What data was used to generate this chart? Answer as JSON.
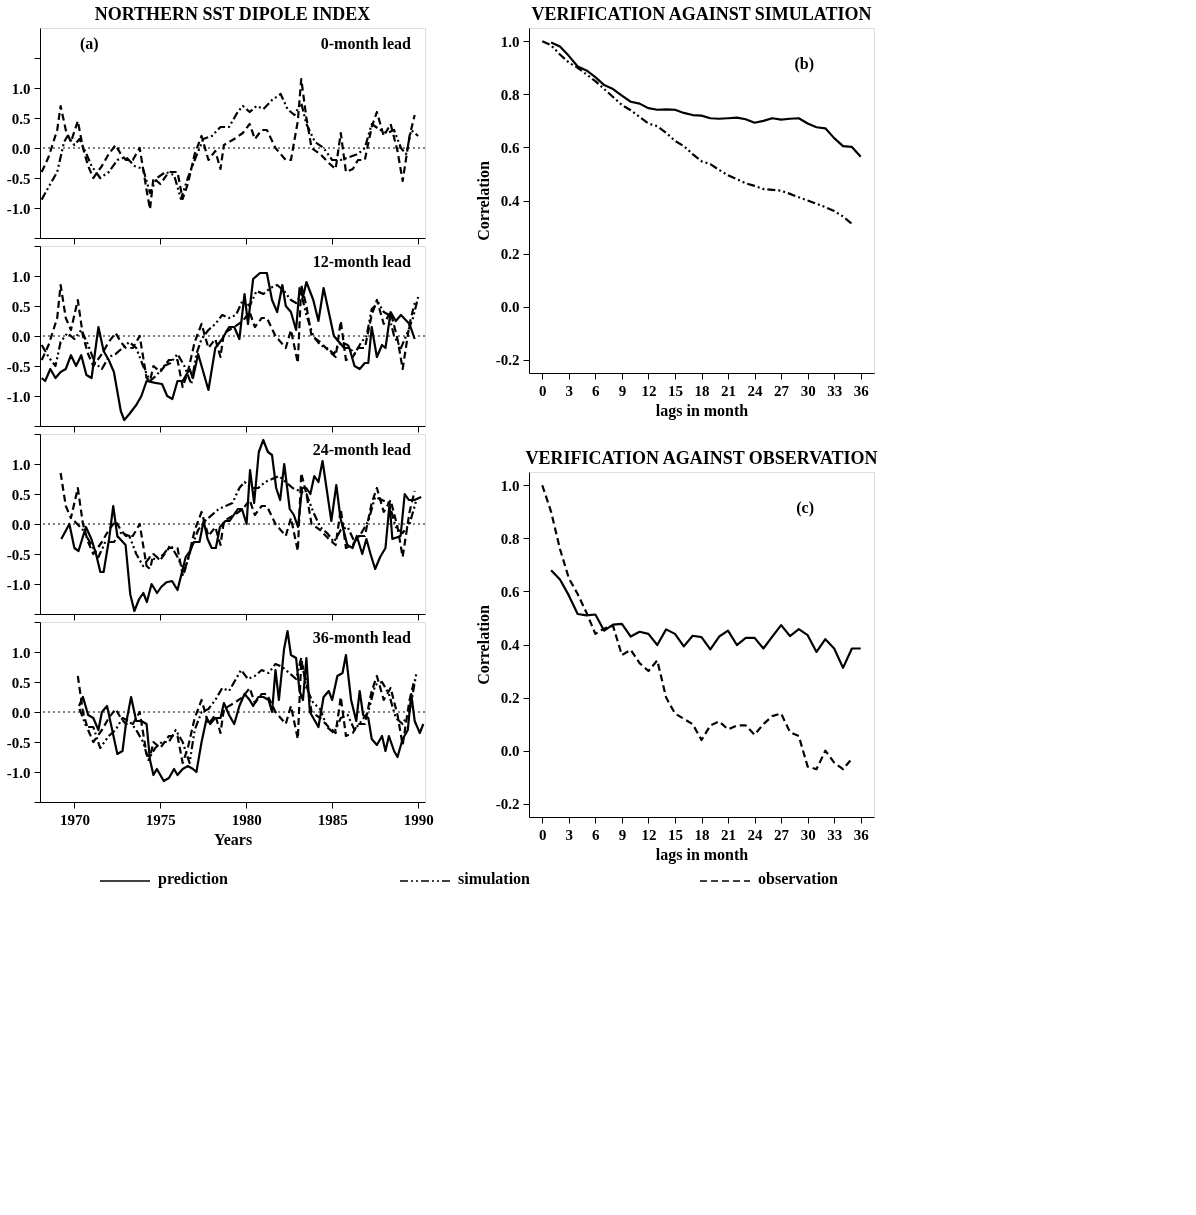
{
  "chart_data": [
    {
      "type": "line",
      "title": "NORTHERN SST DIPOLE INDEX",
      "subtitle": "0-month lead",
      "annotations": [
        "(a)"
      ],
      "tick_labels": "y",
      "xlim": [
        1968,
        1990.4
      ],
      "xticks": [
        1970,
        1975,
        1980,
        1985,
        1990
      ],
      "ylim": [
        -1.5,
        2.0
      ],
      "yticks": [
        {
          "value": -1.5,
          "label": null
        },
        {
          "value": -1,
          "label": "-1.0"
        },
        -0.5,
        {
          "value": 0,
          "label": "0.0"
        },
        0.5,
        {
          "value": 1,
          "label": "1.0"
        },
        {
          "value": 1.5,
          "label": null
        }
      ],
      "ref_lines": [
        {
          "axis": "y",
          "value": 0.0,
          "line_style": "dotted",
          "color": "#000000"
        }
      ],
      "series": [
        {
          "color": "#000000",
          "line_style": "dashdotdot",
          "x": [
            1968.1,
            1968.5,
            1969,
            1969.4,
            1969.6,
            1970,
            1970.3,
            1970.7,
            1971,
            1971.5,
            1972,
            1972.5,
            1973,
            1973.5,
            1974,
            1974.4,
            1974.8,
            1975.3,
            1975.8,
            1976.2,
            1976.6,
            1977,
            1977.5,
            1978,
            1978.5,
            1979,
            1979.5,
            1979.8,
            1980.2,
            1980.6,
            1981,
            1981.5,
            1982,
            1982.4,
            1982.8,
            1983.2,
            1983.5,
            1984,
            1984.5,
            1985,
            1985.5,
            1986,
            1986.5,
            1986.9,
            1987.3,
            1987.8,
            1988.2,
            1988.6,
            1989,
            1989.3,
            1989.6,
            1990
          ],
          "values": [
            -0.86,
            -0.65,
            -0.4,
            0.1,
            0.2,
            0.05,
            0.15,
            -0.1,
            -0.3,
            -0.5,
            -0.4,
            -0.2,
            -0.15,
            -0.3,
            -0.35,
            -0.75,
            -0.5,
            -0.4,
            -0.45,
            -0.85,
            -0.5,
            -0.2,
            0.15,
            0.2,
            0.35,
            0.35,
            0.6,
            0.7,
            0.6,
            0.7,
            0.65,
            0.8,
            0.9,
            0.65,
            0.55,
            0.75,
            0.4,
            0.1,
            0.0,
            -0.2,
            -0.2,
            -0.15,
            -0.1,
            0.0,
            0.4,
            0.3,
            0.25,
            0.3,
            0.0,
            -0.1,
            0.3,
            0.2
          ]
        },
        {
          "color": "#000000",
          "line_style": "dashed",
          "x": [
            1968.1,
            1968.5,
            1969,
            1969.2,
            1969.5,
            1969.8,
            1970.2,
            1970.5,
            1970.8,
            1971.1,
            1971.6,
            1972,
            1972.4,
            1972.7,
            1973,
            1973.4,
            1973.8,
            1974.2,
            1974.4,
            1974.6,
            1975,
            1975.5,
            1976,
            1976.3,
            1976.6,
            1977,
            1977.4,
            1977.8,
            1978.2,
            1978.5,
            1978.7,
            1979.3,
            1979.8,
            1980.2,
            1980.5,
            1980.9,
            1981.2,
            1981.7,
            1982.3,
            1982.6,
            1983,
            1983.2,
            1983.5,
            1983.8,
            1984.3,
            1984.8,
            1985.2,
            1985.5,
            1985.8,
            1986.2,
            1986.5,
            1986.9,
            1987.3,
            1987.6,
            1988,
            1988.4,
            1988.8,
            1989.1,
            1989.5,
            1989.8
          ],
          "values": [
            -0.4,
            -0.15,
            0.3,
            0.7,
            0.3,
            0.1,
            0.45,
            0.0,
            -0.3,
            -0.5,
            -0.3,
            -0.1,
            0.05,
            -0.1,
            -0.2,
            -0.2,
            0.0,
            -0.7,
            -1.02,
            -0.5,
            -0.6,
            -0.4,
            -0.4,
            -0.85,
            -0.6,
            -0.1,
            0.2,
            -0.2,
            -0.05,
            -0.35,
            0.05,
            0.15,
            0.25,
            0.4,
            0.15,
            0.3,
            0.3,
            0.0,
            -0.2,
            -0.2,
            0.45,
            1.15,
            0.5,
            0.0,
            -0.1,
            -0.25,
            -0.35,
            0.25,
            -0.4,
            -0.35,
            -0.2,
            -0.2,
            0.35,
            0.6,
            0.2,
            0.4,
            -0.05,
            -0.55,
            0.2,
            0.55
          ]
        }
      ]
    },
    {
      "type": "line",
      "subtitle": "12-month lead",
      "tick_labels": "y",
      "xlim": [
        1968,
        1990.4
      ],
      "xticks": [
        1970,
        1975,
        1980,
        1985,
        1990
      ],
      "ylim": [
        -1.5,
        1.5
      ],
      "yticks": [
        {
          "value": -1.5,
          "label": null
        },
        {
          "value": -1,
          "label": "-1.0"
        },
        -0.5,
        {
          "value": 0,
          "label": "0.0"
        },
        0.5,
        {
          "value": 1,
          "label": "1.0"
        },
        {
          "value": 1.5,
          "label": null
        }
      ],
      "ref_lines": [
        {
          "axis": "y",
          "value": 0.0,
          "line_style": "dotted",
          "color": "#000000"
        }
      ],
      "series": [
        {
          "color": "#000000",
          "line_style": "solid",
          "x": [
            1968.1,
            1968.3,
            1968.6,
            1968.9,
            1969.2,
            1969.5,
            1969.8,
            1970.1,
            1970.4,
            1970.7,
            1971,
            1971.4,
            1971.7,
            1972,
            1972.3,
            1972.7,
            1972.9,
            1973.2,
            1973.6,
            1973.9,
            1974.2,
            1974.7,
            1975.1,
            1975.4,
            1975.7,
            1976,
            1976.3,
            1976.7,
            1976.9,
            1977.2,
            1977.5,
            1977.8,
            1978.2,
            1978.6,
            1979,
            1979.3,
            1979.6,
            1979.9,
            1980.1,
            1980.4,
            1980.8,
            1981.2,
            1981.5,
            1981.8,
            1982.1,
            1982.3,
            1982.6,
            1982.9,
            1983.1,
            1983.3,
            1983.5,
            1983.9,
            1984.2,
            1984.5,
            1984.8,
            1985.1,
            1985.4,
            1985.7,
            1986,
            1986.3,
            1986.6,
            1986.9,
            1987.1,
            1987.3,
            1987.6,
            1987.9,
            1988.1,
            1988.4,
            1988.7,
            1989,
            1989.5,
            1989.8
          ],
          "values": [
            -0.7,
            -0.75,
            -0.55,
            -0.7,
            -0.6,
            -0.55,
            -0.32,
            -0.5,
            -0.32,
            -0.65,
            -0.7,
            0.15,
            -0.25,
            -0.4,
            -0.6,
            -1.25,
            -1.4,
            -1.3,
            -1.15,
            -1.0,
            -0.75,
            -0.78,
            -0.8,
            -1.0,
            -1.05,
            -0.75,
            -0.75,
            -0.55,
            -0.7,
            -0.3,
            -0.6,
            -0.9,
            -0.2,
            -0.05,
            0.15,
            0.15,
            -0.05,
            0.7,
            0.2,
            0.95,
            1.05,
            1.05,
            0.6,
            0.4,
            0.85,
            0.5,
            0.4,
            0.1,
            0.8,
            0.65,
            0.9,
            0.6,
            0.25,
            0.8,
            0.4,
            0.0,
            -0.1,
            -0.2,
            -0.2,
            -0.5,
            -0.55,
            -0.45,
            -0.45,
            0.15,
            -0.35,
            -0.15,
            -0.2,
            0.4,
            0.25,
            0.35,
            0.2,
            -0.05
          ]
        },
        {
          "color": "#000000",
          "line_style": "dashdotdot",
          "x": [
            1968.1,
            1968.5,
            1968.9,
            1969.2,
            1969.6,
            1970,
            1970.4,
            1970.8,
            1971.2,
            1971.6,
            1972,
            1972.4,
            1972.8,
            1973.2,
            1973.6,
            1974,
            1974.4,
            1974.8,
            1975.2,
            1975.6,
            1976,
            1976.4,
            1976.8,
            1977.1,
            1977.4,
            1977.8,
            1978.2,
            1978.6,
            1979,
            1979.4,
            1979.8,
            1980.2,
            1980.6,
            1981,
            1981.4,
            1981.8,
            1982.2,
            1982.6,
            1982.9,
            1983.2,
            1983.5,
            1983.9,
            1984.3,
            1984.7,
            1985.1,
            1985.5,
            1985.9,
            1986.3,
            1986.7,
            1987,
            1987.3,
            1987.7,
            1988,
            1988.3,
            1988.6,
            1989,
            1989.3,
            1989.7,
            1990
          ],
          "values": [
            -0.15,
            -0.35,
            -0.5,
            -0.1,
            0.05,
            -0.05,
            0.1,
            -0.15,
            -0.45,
            -0.55,
            -0.35,
            -0.3,
            -0.2,
            -0.1,
            -0.2,
            -0.5,
            -0.75,
            -0.65,
            -0.5,
            -0.45,
            -0.3,
            -0.5,
            -0.8,
            -0.3,
            -0.05,
            0.1,
            0.2,
            0.35,
            0.3,
            0.35,
            0.6,
            0.5,
            0.75,
            0.7,
            0.8,
            0.85,
            0.75,
            0.6,
            0.55,
            0.7,
            0.35,
            0.0,
            -0.15,
            -0.2,
            -0.3,
            -0.1,
            -0.15,
            -0.3,
            -0.1,
            0.0,
            0.45,
            0.55,
            0.4,
            0.35,
            0.0,
            -0.2,
            0.0,
            0.3,
            0.65
          ]
        },
        {
          "color": "#000000",
          "line_style": "dashed",
          "x": [
            1968.1,
            1968.5,
            1969,
            1969.2,
            1969.5,
            1969.8,
            1970.2,
            1970.5,
            1970.8,
            1971.1,
            1971.6,
            1972,
            1972.4,
            1972.7,
            1973,
            1973.4,
            1973.8,
            1974.2,
            1974.4,
            1974.6,
            1975,
            1975.5,
            1976,
            1976.3,
            1976.6,
            1977,
            1977.4,
            1977.8,
            1978.2,
            1978.5,
            1978.7,
            1979.3,
            1979.8,
            1980.2,
            1980.5,
            1980.9,
            1981.2,
            1981.7,
            1982.3,
            1982.6,
            1983,
            1983.2,
            1983.5,
            1983.8,
            1984.3,
            1984.8,
            1985.2,
            1985.5,
            1985.8,
            1986.2,
            1986.5,
            1986.9,
            1987.3,
            1987.6,
            1988,
            1988.4,
            1988.8,
            1989.1,
            1989.5,
            1989.8
          ],
          "values": [
            -0.4,
            -0.15,
            0.3,
            0.85,
            0.3,
            0.1,
            0.6,
            0.0,
            -0.3,
            -0.5,
            -0.3,
            -0.1,
            0.05,
            -0.1,
            -0.2,
            -0.2,
            0.0,
            -0.7,
            -0.75,
            -0.5,
            -0.6,
            -0.4,
            -0.4,
            -0.85,
            -0.6,
            -0.1,
            0.2,
            -0.2,
            -0.05,
            -0.35,
            0.05,
            0.15,
            0.25,
            0.4,
            0.15,
            0.3,
            0.3,
            0.0,
            -0.2,
            0.1,
            -0.45,
            0.85,
            0.5,
            0.0,
            -0.1,
            -0.25,
            -0.35,
            0.25,
            -0.4,
            -0.35,
            -0.2,
            -0.2,
            0.35,
            0.6,
            0.2,
            0.4,
            -0.05,
            -0.55,
            0.2,
            0.55
          ]
        }
      ]
    },
    {
      "type": "line",
      "subtitle": "24-month lead",
      "tick_labels": "y",
      "xlim": [
        1968,
        1990.4
      ],
      "xticks": [
        1970,
        1975,
        1980,
        1985,
        1990
      ],
      "ylim": [
        -1.5,
        1.5
      ],
      "yticks": [
        {
          "value": -1.5,
          "label": null
        },
        {
          "value": -1,
          "label": "-1.0"
        },
        -0.5,
        {
          "value": 0,
          "label": "0.0"
        },
        0.5,
        {
          "value": 1,
          "label": "1.0"
        },
        {
          "value": 1.5,
          "label": null
        }
      ],
      "ref_lines": [
        {
          "axis": "y",
          "value": 0.0,
          "line_style": "dotted",
          "color": "#000000"
        }
      ],
      "series": [
        {
          "color": "#000000",
          "line_style": "solid",
          "x": [
            1969.24,
            1969.71,
            1970.0,
            1970.24,
            1970.67,
            1970.99,
            1971.26,
            1971.51,
            1971.7,
            1972.02,
            1972.26,
            1972.5,
            1972.98,
            1973.25,
            1973.49,
            1973.77,
            1974.01,
            1974.22,
            1974.49,
            1974.81,
            1975.05,
            1975.37,
            1975.68,
            1976.0,
            1976.48,
            1976.72,
            1976.96,
            1977.28,
            1977.52,
            1977.75,
            1977.99,
            1978.23,
            1978.47,
            1978.79,
            1979.03,
            1979.27,
            1979.51,
            1979.75,
            1980.02,
            1980.22,
            1980.46,
            1980.73,
            1980.99,
            1981.26,
            1981.5,
            1981.74,
            1981.97,
            1982.21,
            1982.53,
            1982.77,
            1983.01,
            1983.25,
            1983.49,
            1983.73,
            1983.96,
            1984.2,
            1984.44,
            1984.95,
            1985.24,
            1985.48,
            1985.88,
            1986.19,
            1986.43,
            1986.75,
            1986.99,
            1987.23,
            1987.5,
            1987.79,
            1988.1,
            1988.34,
            1988.5,
            1988.98,
            1989.22,
            1989.46,
            1989.78,
            1990.18
          ],
          "values": [
            -0.25,
            0.0,
            -0.4,
            -0.45,
            -0.05,
            -0.25,
            -0.5,
            -0.8,
            -0.8,
            -0.25,
            0.3,
            -0.2,
            -0.35,
            -1.17,
            -1.45,
            -1.25,
            -1.15,
            -1.3,
            -1.0,
            -1.15,
            -1.05,
            -0.97,
            -0.95,
            -1.1,
            -0.55,
            -0.45,
            -0.3,
            -0.3,
            0.05,
            -0.25,
            -0.4,
            -0.4,
            -0.05,
            0.05,
            0.05,
            0.15,
            0.25,
            0.25,
            0.0,
            0.9,
            0.35,
            1.2,
            1.4,
            1.2,
            1.15,
            0.6,
            0.4,
            1.0,
            0.25,
            0.15,
            -0.05,
            0.6,
            0.6,
            0.5,
            0.8,
            0.7,
            1.05,
            0.05,
            0.65,
            0.1,
            -0.35,
            -0.4,
            -0.2,
            -0.5,
            -0.25,
            -0.5,
            -0.75,
            -0.55,
            -0.4,
            0.35,
            -0.25,
            -0.2,
            0.5,
            0.4,
            0.4,
            0.45
          ]
        },
        {
          "color": "#000000",
          "line_style": "dashdotdot",
          "x": [
            1970.0,
            1970.5,
            1971,
            1971.4,
            1971.8,
            1972.3,
            1972.7,
            1973.2,
            1973.6,
            1974,
            1974.4,
            1974.8,
            1975.2,
            1975.6,
            1976,
            1976.4,
            1976.8,
            1977.2,
            1977.6,
            1978,
            1978.4,
            1978.8,
            1979.2,
            1979.6,
            1979.9,
            1980.3,
            1980.7,
            1981.1,
            1981.5,
            1981.9,
            1982.3,
            1982.7,
            1983.1,
            1983.5,
            1983.9,
            1984.3,
            1984.7,
            1985.1,
            1985.5,
            1985.9,
            1986.3,
            1986.7,
            1987.1,
            1987.5,
            1987.9,
            1988.3,
            1988.7,
            1989.1,
            1989.5,
            1989.9
          ],
          "values": [
            0.05,
            -0.1,
            -0.35,
            -0.55,
            -0.3,
            -0.3,
            -0.15,
            -0.2,
            -0.5,
            -0.7,
            -0.55,
            -0.6,
            -0.5,
            -0.35,
            -0.55,
            -0.8,
            -0.4,
            -0.1,
            0.05,
            0.15,
            0.25,
            0.3,
            0.35,
            0.6,
            0.7,
            0.6,
            0.6,
            0.7,
            0.75,
            0.8,
            0.7,
            0.6,
            0.55,
            0.5,
            0.2,
            -0.05,
            -0.15,
            -0.3,
            -0.1,
            -0.05,
            -0.3,
            -0.15,
            0.05,
            0.45,
            0.4,
            0.35,
            -0.05,
            -0.15,
            0.0,
            0.4
          ]
        },
        {
          "color": "#000000",
          "line_style": "dashed",
          "x": [
            1969.2,
            1969.5,
            1969.8,
            1970.2,
            1970.5,
            1970.8,
            1971.1,
            1971.6,
            1972,
            1972.4,
            1972.7,
            1973,
            1973.4,
            1973.8,
            1974.2,
            1974.4,
            1974.6,
            1975,
            1975.5,
            1976,
            1976.3,
            1976.6,
            1977,
            1977.4,
            1977.8,
            1978.2,
            1978.5,
            1978.7,
            1979.3,
            1979.8,
            1980.2,
            1980.5,
            1980.9,
            1981.2,
            1981.7,
            1982.3,
            1982.6,
            1983,
            1983.2,
            1983.5,
            1983.8,
            1984.3,
            1984.8,
            1985.2,
            1985.5,
            1985.8,
            1986.2,
            1986.5,
            1986.9,
            1987.3,
            1987.6,
            1988,
            1988.4,
            1988.8,
            1989.1,
            1989.5,
            1989.8
          ],
          "values": [
            0.85,
            0.3,
            0.1,
            0.6,
            0.0,
            -0.3,
            -0.5,
            -0.3,
            -0.1,
            0.05,
            -0.1,
            -0.2,
            -0.2,
            0.0,
            -0.7,
            -0.75,
            -0.5,
            -0.6,
            -0.4,
            -0.4,
            -0.85,
            -0.6,
            -0.1,
            0.2,
            -0.2,
            -0.05,
            -0.35,
            0.05,
            0.15,
            0.25,
            0.4,
            0.15,
            0.3,
            0.3,
            0.0,
            -0.2,
            0.1,
            -0.45,
            0.85,
            0.5,
            0.0,
            -0.1,
            -0.25,
            -0.35,
            0.25,
            -0.4,
            -0.35,
            -0.2,
            -0.2,
            0.35,
            0.6,
            0.2,
            0.4,
            -0.05,
            -0.55,
            0.2,
            0.55
          ]
        }
      ]
    },
    {
      "type": "line",
      "subtitle": "36-month lead",
      "xlabel": "Years",
      "legend": "bottom",
      "xlim": [
        1968,
        1990.4
      ],
      "xticks": [
        1970,
        1975,
        1980,
        1985,
        1990
      ],
      "ylim": [
        -1.5,
        1.5
      ],
      "yticks": [
        {
          "value": -1.5,
          "label": null
        },
        {
          "value": -1,
          "label": "-1.0"
        },
        -0.5,
        {
          "value": 0,
          "label": "0.0"
        },
        0.5,
        {
          "value": 1,
          "label": "1.0"
        },
        {
          "value": 1.5,
          "label": null
        }
      ],
      "ref_lines": [
        {
          "axis": "y",
          "value": 0.0,
          "line_style": "dotted",
          "color": "#000000"
        }
      ],
      "series": [
        {
          "name": "prediction",
          "color": "#000000",
          "line_style": "solid",
          "x": [
            1970.27,
            1970.5,
            1970.8,
            1971.1,
            1971.4,
            1971.6,
            1971.9,
            1972.2,
            1972.5,
            1972.8,
            1973.0,
            1973.3,
            1973.6,
            1973.9,
            1974.2,
            1974.4,
            1974.6,
            1974.8,
            1975.0,
            1975.2,
            1975.5,
            1975.8,
            1976.0,
            1976.3,
            1976.6,
            1976.9,
            1977.1,
            1977.4,
            1977.7,
            1977.9,
            1978.2,
            1978.5,
            1978.7,
            1979.0,
            1979.3,
            1979.6,
            1979.9,
            1980.2,
            1980.4,
            1980.7,
            1981.0,
            1981.3,
            1981.5,
            1981.7,
            1981.9,
            1982.2,
            1982.4,
            1982.6,
            1982.9,
            1983.1,
            1983.3,
            1983.5,
            1983.7,
            1984.0,
            1984.2,
            1984.5,
            1984.8,
            1985.0,
            1985.3,
            1985.6,
            1985.8,
            1986.1,
            1986.4,
            1986.6,
            1986.8,
            1987.1,
            1987.3,
            1987.6,
            1987.9,
            1988.1,
            1988.3,
            1988.6,
            1988.8,
            1989.1,
            1989.4,
            1989.6,
            1989.8,
            1990.1,
            1990.3
          ],
          "values": [
            0.1,
            0.25,
            -0.05,
            -0.1,
            -0.3,
            0.0,
            0.1,
            -0.3,
            -0.7,
            -0.65,
            -0.2,
            0.25,
            -0.15,
            -0.15,
            -0.2,
            -0.8,
            -1.05,
            -0.95,
            -1.05,
            -1.15,
            -1.1,
            -0.95,
            -1.05,
            -0.95,
            -0.9,
            -0.95,
            -1.0,
            -0.5,
            -0.1,
            -0.2,
            -0.1,
            -0.1,
            0.15,
            -0.05,
            -0.2,
            0.1,
            0.3,
            0.2,
            0.1,
            0.25,
            0.25,
            0.2,
            0.0,
            0.7,
            0.2,
            1.05,
            1.35,
            0.95,
            0.9,
            0.35,
            0.2,
            0.9,
            0.0,
            -0.15,
            -0.25,
            0.25,
            0.35,
            0.2,
            0.6,
            0.65,
            0.95,
            0.2,
            -0.15,
            0.35,
            -0.05,
            -0.1,
            -0.45,
            -0.55,
            -0.4,
            -0.65,
            -0.4,
            -0.65,
            -0.75,
            -0.45,
            -0.3,
            0.3,
            -0.15,
            -0.35,
            -0.2
          ]
        },
        {
          "name": "simulation",
          "color": "#000000",
          "line_style": "dashdotdot",
          "x": [
            1970.3,
            1970.7,
            1971.1,
            1971.5,
            1972,
            1972.4,
            1972.8,
            1973.2,
            1973.6,
            1974,
            1974.3,
            1974.7,
            1975.1,
            1975.5,
            1975.9,
            1976.3,
            1976.7,
            1977,
            1977.4,
            1977.8,
            1978.2,
            1978.6,
            1979,
            1979.4,
            1979.7,
            1980.1,
            1980.5,
            1980.9,
            1981.3,
            1981.7,
            1982.1,
            1982.5,
            1982.9,
            1983.2,
            1983.5,
            1983.9,
            1984.3,
            1984.7,
            1985.1,
            1985.5,
            1985.9,
            1986.3,
            1986.7,
            1987.1,
            1987.5,
            1987.9,
            1988.3,
            1988.7,
            1989.1,
            1989.5,
            1989.9
          ],
          "values": [
            0.05,
            -0.25,
            -0.25,
            -0.6,
            -0.4,
            -0.3,
            -0.1,
            -0.15,
            -0.3,
            -0.5,
            -0.8,
            -0.6,
            -0.5,
            -0.5,
            -0.3,
            -0.5,
            -0.85,
            -0.3,
            0.0,
            0.05,
            0.2,
            0.4,
            0.35,
            0.55,
            0.7,
            0.55,
            0.6,
            0.7,
            0.65,
            0.8,
            0.75,
            0.65,
            0.55,
            0.9,
            0.4,
            0.15,
            0.05,
            -0.25,
            -0.35,
            -0.1,
            -0.05,
            -0.3,
            -0.15,
            0.0,
            0.45,
            0.5,
            0.3,
            -0.1,
            -0.2,
            0.0,
            0.65
          ]
        },
        {
          "name": "observation",
          "color": "#000000",
          "line_style": "dashed",
          "x": [
            1970.2,
            1970.5,
            1970.8,
            1971.1,
            1971.6,
            1972,
            1972.4,
            1972.7,
            1973,
            1973.4,
            1973.8,
            1974.2,
            1974.4,
            1974.6,
            1975,
            1975.5,
            1976,
            1976.3,
            1976.6,
            1977,
            1977.4,
            1977.8,
            1978.2,
            1978.5,
            1978.7,
            1979.3,
            1979.8,
            1980.2,
            1980.5,
            1980.9,
            1981.2,
            1981.7,
            1982.3,
            1982.6,
            1983,
            1983.2,
            1983.5,
            1983.8,
            1984.3,
            1984.8,
            1985.2,
            1985.5,
            1985.8,
            1986.2,
            1986.5,
            1986.9,
            1987.3,
            1987.6,
            1988,
            1988.4,
            1988.8,
            1989.1,
            1989.5,
            1989.8
          ],
          "values": [
            0.6,
            0.0,
            -0.3,
            -0.5,
            -0.3,
            -0.1,
            0.05,
            -0.1,
            -0.2,
            -0.2,
            0.0,
            -0.7,
            -0.75,
            -0.5,
            -0.6,
            -0.4,
            -0.4,
            -0.85,
            -0.6,
            -0.1,
            0.2,
            -0.2,
            -0.05,
            -0.35,
            0.05,
            0.15,
            0.25,
            0.4,
            0.15,
            0.3,
            0.3,
            0.0,
            -0.2,
            0.1,
            -0.45,
            0.85,
            0.5,
            0.0,
            -0.1,
            -0.25,
            -0.35,
            0.25,
            -0.4,
            -0.35,
            -0.2,
            -0.2,
            0.35,
            0.6,
            0.2,
            0.4,
            -0.05,
            -0.55,
            0.2,
            0.55
          ]
        }
      ]
    },
    {
      "type": "line",
      "title": "VERIFICATION AGAINST SIMULATION",
      "annotations": [
        "(b)"
      ],
      "xlabel": "lags in month",
      "ylabel": "Correlation",
      "xlim": [
        -1.5,
        37.5
      ],
      "xticks": [
        0,
        3,
        6,
        9,
        12,
        15,
        18,
        21,
        24,
        27,
        30,
        33,
        36
      ],
      "ylim": [
        -0.25,
        1.05
      ],
      "yticks": [
        -0.2,
        {
          "value": 0,
          "label": "0.0"
        },
        0.2,
        0.4,
        0.6,
        0.8,
        {
          "value": 1,
          "label": "1.0"
        }
      ],
      "series": [
        {
          "color": "#000000",
          "line_style": "solid",
          "x": [
            1,
            2,
            3,
            4,
            5,
            6,
            7,
            8,
            9,
            10,
            11,
            12,
            13,
            14,
            15,
            16,
            17,
            18,
            19,
            20,
            21,
            22,
            23,
            24,
            25,
            26,
            27,
            28,
            29,
            30,
            31,
            32,
            33,
            34,
            35,
            36
          ],
          "values": [
            0.995,
            0.98,
            0.945,
            0.905,
            0.89,
            0.865,
            0.835,
            0.82,
            0.795,
            0.772,
            0.765,
            0.748,
            0.742,
            0.743,
            0.742,
            0.73,
            0.722,
            0.72,
            0.71,
            0.708,
            0.71,
            0.712,
            0.706,
            0.693,
            0.7,
            0.71,
            0.705,
            0.708,
            0.71,
            0.69,
            0.676,
            0.672,
            0.635,
            0.605,
            0.602,
            0.565
          ]
        },
        {
          "color": "#000000",
          "line_style": "dashdotdot",
          "x": [
            0,
            1,
            2,
            3,
            4,
            5,
            6,
            7,
            8,
            9,
            10,
            11,
            12,
            13,
            14,
            15,
            16,
            17,
            18,
            19,
            20,
            21,
            22,
            23,
            24,
            25,
            26,
            27,
            28,
            29,
            30,
            31,
            32,
            33,
            34,
            35
          ],
          "values": [
            1.0,
            0.985,
            0.95,
            0.92,
            0.9,
            0.875,
            0.85,
            0.82,
            0.79,
            0.76,
            0.74,
            0.715,
            0.69,
            0.68,
            0.655,
            0.625,
            0.605,
            0.575,
            0.548,
            0.537,
            0.515,
            0.495,
            0.48,
            0.465,
            0.455,
            0.443,
            0.44,
            0.437,
            0.425,
            0.412,
            0.4,
            0.388,
            0.375,
            0.36,
            0.34,
            0.312
          ]
        }
      ]
    },
    {
      "type": "line",
      "title": "VERIFICATION AGAINST OBSERVATION",
      "annotations": [
        "(c)"
      ],
      "xlabel": "lags in month",
      "ylabel": "Correlation",
      "xlim": [
        -1.5,
        37.5
      ],
      "xticks": [
        0,
        3,
        6,
        9,
        12,
        15,
        18,
        21,
        24,
        27,
        30,
        33,
        36
      ],
      "ylim": [
        -0.25,
        1.05
      ],
      "yticks": [
        -0.2,
        {
          "value": 0,
          "label": "0.0"
        },
        0.2,
        0.4,
        0.6,
        0.8,
        {
          "value": 1,
          "label": "1.0"
        }
      ],
      "series": [
        {
          "color": "#000000",
          "line_style": "solid",
          "x": [
            1,
            2,
            3,
            4,
            5,
            6,
            7,
            8,
            9,
            10,
            11,
            12,
            13,
            14,
            15,
            16,
            17,
            18,
            19,
            20,
            21,
            22,
            23,
            24,
            25,
            26,
            27,
            28,
            29,
            30,
            31,
            32,
            33,
            34,
            35,
            36
          ],
          "values": [
            0.68,
            0.645,
            0.585,
            0.515,
            0.51,
            0.513,
            0.452,
            0.475,
            0.478,
            0.43,
            0.448,
            0.44,
            0.398,
            0.457,
            0.44,
            0.393,
            0.433,
            0.428,
            0.382,
            0.43,
            0.452,
            0.398,
            0.425,
            0.425,
            0.385,
            0.43,
            0.473,
            0.432,
            0.458,
            0.435,
            0.372,
            0.42,
            0.385,
            0.312,
            0.385,
            0.385
          ]
        },
        {
          "color": "#000000",
          "line_style": "dashed",
          "x": [
            0,
            1,
            2,
            3,
            4,
            5,
            6,
            7,
            8,
            9,
            10,
            11,
            12,
            13,
            14,
            15,
            16,
            17,
            18,
            19,
            20,
            21,
            22,
            23,
            24,
            25,
            26,
            27,
            28,
            29,
            30,
            31,
            32,
            33,
            34,
            35
          ],
          "values": [
            1.0,
            0.9,
            0.76,
            0.65,
            0.59,
            0.52,
            0.44,
            0.46,
            0.47,
            0.36,
            0.38,
            0.33,
            0.3,
            0.34,
            0.2,
            0.14,
            0.12,
            0.1,
            0.04,
            0.095,
            0.11,
            0.08,
            0.095,
            0.095,
            0.06,
            0.1,
            0.13,
            0.14,
            0.07,
            0.055,
            -0.06,
            -0.07,
            0.0,
            -0.045,
            -0.07,
            -0.03
          ]
        }
      ]
    }
  ]
}
